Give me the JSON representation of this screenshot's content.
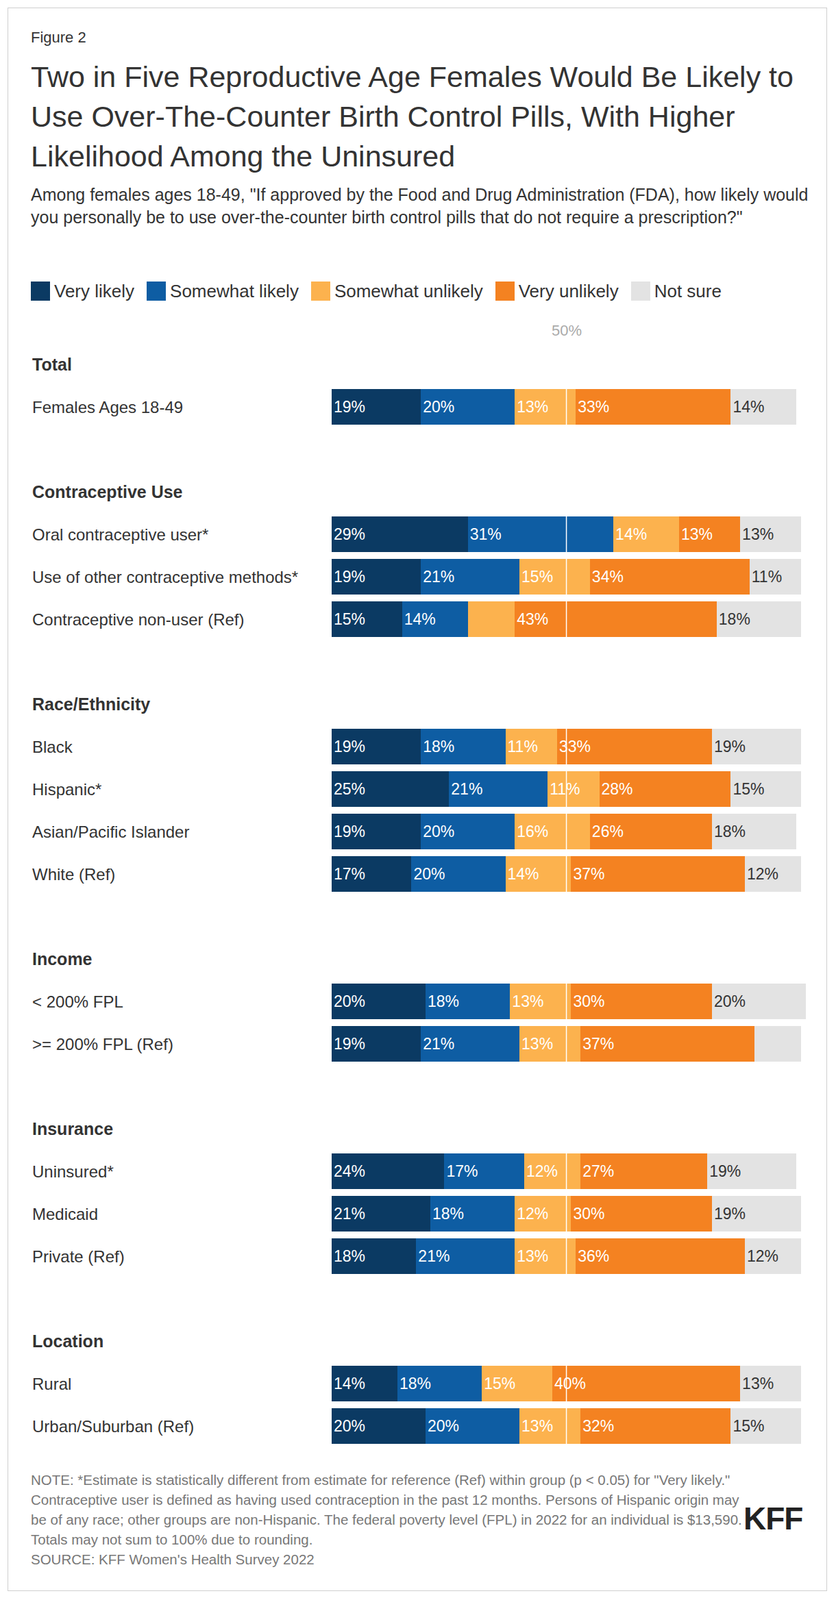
{
  "chart_data": {
    "type": "bar",
    "orientation": "horizontal",
    "stacked": true,
    "data_labels": true,
    "tick_labels": false,
    "grid": false,
    "legend": "top",
    "figure_label": "Figure 2",
    "title": "Two in Five Reproductive Age Females Would Be Likely to Use Over-The-Counter Birth Control Pills, With Higher Likelihood Among the Uninsured",
    "subtitle": "Among females ages 18-49, \"If approved by the Food and Drug Administration (FDA), how likely would you personally be to use over-the-counter birth control pills that do not require a prescription?\"",
    "groups": [
      {
        "name": "Total",
        "categories": [
          "Females Ages 18-49"
        ]
      },
      {
        "name": "Contraceptive Use",
        "categories": [
          "Oral contraceptive user*",
          "Use of other contraceptive methods*",
          "Contraceptive non-user (Ref)"
        ]
      },
      {
        "name": "Race/Ethnicity",
        "categories": [
          "Black",
          "Hispanic*",
          "Asian/Pacific Islander",
          "White (Ref)"
        ]
      },
      {
        "name": "Income",
        "categories": [
          "< 200% FPL",
          ">= 200% FPL (Ref)"
        ]
      },
      {
        "name": "Insurance",
        "categories": [
          "Uninsured*",
          "Medicaid",
          "Private (Ref)"
        ]
      },
      {
        "name": "Location",
        "categories": [
          "Rural",
          "Urban/Suburban (Ref)"
        ]
      }
    ],
    "xlim": [
      0,
      101
    ],
    "xticks": [],
    "series": [
      {
        "name": "Very likely",
        "color": "#0b3a63",
        "values": [
          19,
          29,
          19,
          15,
          19,
          25,
          19,
          17,
          20,
          19,
          24,
          21,
          18,
          14,
          20
        ],
        "value_labels": [
          "19%",
          "29%",
          "19%",
          "15%",
          "19%",
          "25%",
          "19%",
          "17%",
          "20%",
          "19%",
          "24%",
          "21%",
          "18%",
          "14%",
          "20%"
        ]
      },
      {
        "name": "Somewhat likely",
        "color": "#0e5da3",
        "values": [
          20,
          31,
          21,
          14,
          18,
          21,
          20,
          20,
          18,
          21,
          17,
          18,
          21,
          18,
          20
        ],
        "value_labels": [
          "20%",
          "31%",
          "21%",
          "14%",
          "18%",
          "21%",
          "20%",
          "20%",
          "18%",
          "21%",
          "17%",
          "18%",
          "21%",
          "18%",
          "20%"
        ]
      },
      {
        "name": "Somewhat unlikely",
        "color": "#fcb24e",
        "values": [
          13,
          14,
          15,
          10,
          11,
          11,
          16,
          14,
          13,
          13,
          12,
          12,
          13,
          15,
          13
        ],
        "value_labels": [
          "13%",
          "14%",
          "15%",
          null,
          "11%",
          "11%",
          "16%",
          "14%",
          "13%",
          "13%",
          "12%",
          "12%",
          "13%",
          "15%",
          "13%"
        ]
      },
      {
        "name": "Very unlikely",
        "color": "#f48221",
        "values": [
          33,
          13,
          34,
          43,
          33,
          28,
          26,
          37,
          30,
          37,
          27,
          30,
          36,
          40,
          32
        ],
        "value_labels": [
          "33%",
          "13%",
          "34%",
          "43%",
          "33%",
          "28%",
          "26%",
          "37%",
          "30%",
          "37%",
          "27%",
          "30%",
          "36%",
          "40%",
          "32%"
        ]
      },
      {
        "name": "Not sure",
        "color": "#e3e3e3",
        "values": [
          14,
          13,
          11,
          18,
          19,
          15,
          18,
          12,
          20,
          10,
          19,
          19,
          12,
          13,
          15
        ],
        "value_labels": [
          "14%",
          "13%",
          "11%",
          "18%",
          "19%",
          "15%",
          "18%",
          "12%",
          "20%",
          null,
          "19%",
          "19%",
          "12%",
          "13%",
          "15%"
        ]
      }
    ],
    "annotations": [
      {
        "x": 50,
        "text": "50%"
      }
    ],
    "note": "NOTE: *Estimate is statistically different from estimate for reference (Ref) within group (p < 0.05) for \"Very likely.\" Contraceptive user is defined as having used contraception in the past 12 months. Persons of Hispanic origin may be of any race; other groups are non-Hispanic. The federal poverty level (FPL) in 2022 for an individual is $13,590. Totals may not sum to 100% due to rounding.",
    "source": "SOURCE: KFF Women's Health Survey 2022",
    "logo": "KFF"
  }
}
